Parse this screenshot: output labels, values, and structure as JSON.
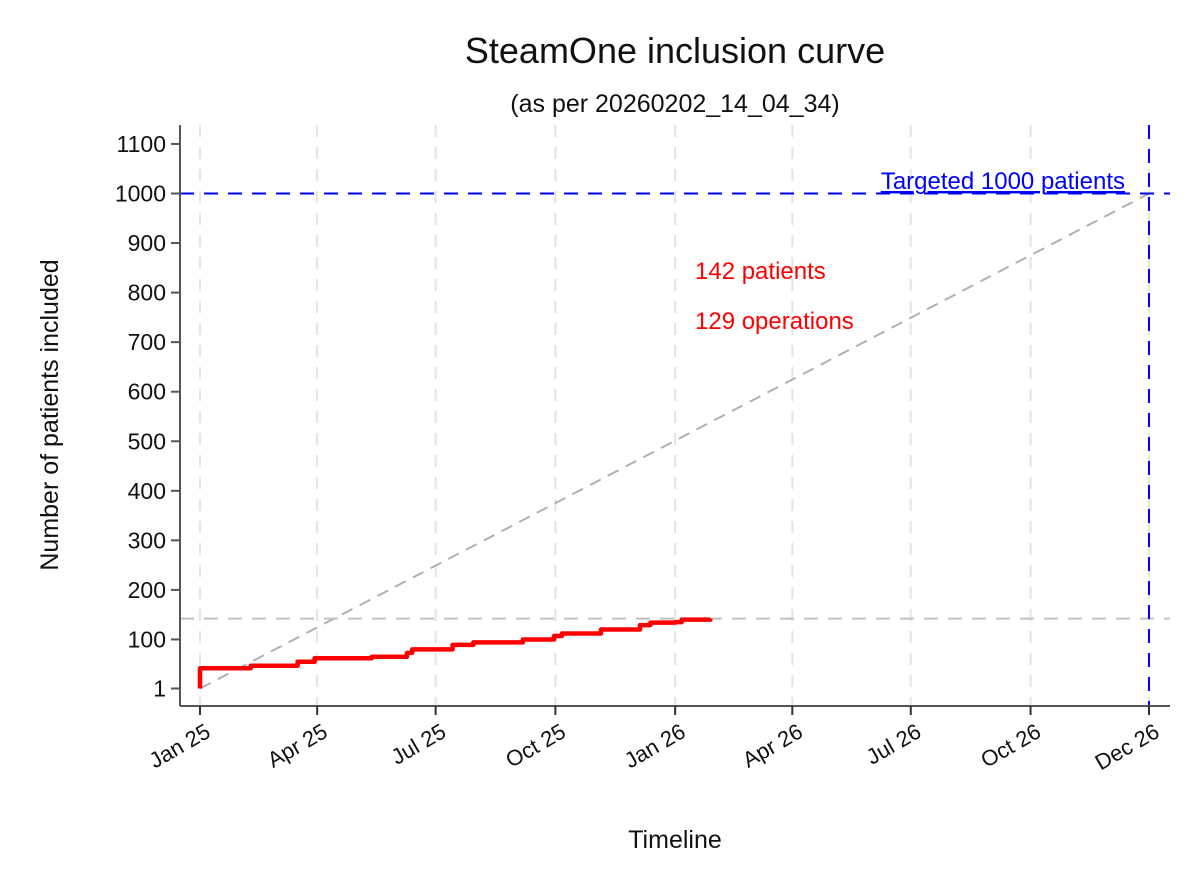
{
  "chart_data": {
    "type": "line",
    "title": "SteamOne inclusion curve",
    "subtitle": "(as per 20260202_14_04_34)",
    "xlabel": "Timeline",
    "ylabel": "Number of patients included",
    "xlim": [
      "2025-01-01",
      "2026-12-31"
    ],
    "ylim": [
      -30,
      1135
    ],
    "grid": "vertical dashed at x ticks",
    "x_ticks": [
      {
        "date": "2025-01-01",
        "label": "Jan 25"
      },
      {
        "date": "2025-04-01",
        "label": "Apr 25"
      },
      {
        "date": "2025-07-01",
        "label": "Jul 25"
      },
      {
        "date": "2025-10-01",
        "label": "Oct 25"
      },
      {
        "date": "2026-01-01",
        "label": "Jan 26"
      },
      {
        "date": "2026-04-01",
        "label": "Apr 26"
      },
      {
        "date": "2026-07-01",
        "label": "Jul 26"
      },
      {
        "date": "2026-10-01",
        "label": "Oct 26"
      },
      {
        "date": "2026-12-31",
        "label": "Dec 26"
      }
    ],
    "y_ticks": [
      1,
      100,
      200,
      300,
      400,
      500,
      600,
      700,
      800,
      900,
      1000,
      1100
    ],
    "series": [
      {
        "color": "#ff0000",
        "points": [
          [
            "2025-01-01",
            1
          ],
          [
            "2025-01-01",
            42
          ],
          [
            "2025-02-09",
            47
          ],
          [
            "2025-03-17",
            55
          ],
          [
            "2025-03-30",
            62
          ],
          [
            "2025-05-13",
            65
          ],
          [
            "2025-06-09",
            73
          ],
          [
            "2025-06-13",
            80
          ],
          [
            "2025-07-14",
            89
          ],
          [
            "2025-07-30",
            94
          ],
          [
            "2025-09-06",
            100
          ],
          [
            "2025-09-30",
            107
          ],
          [
            "2025-10-06",
            112
          ],
          [
            "2025-11-05",
            120
          ],
          [
            "2025-12-05",
            129
          ],
          [
            "2025-12-13",
            134
          ],
          [
            "2026-01-01",
            135
          ],
          [
            "2026-01-06",
            140
          ],
          [
            "2026-01-28",
            142
          ]
        ]
      }
    ],
    "reference_lines": {
      "target_diagonal": {
        "from": [
          "2025-01-01",
          1
        ],
        "to": [
          "2026-12-31",
          1000
        ],
        "color": "#b0b0b0"
      },
      "current_level": {
        "y": 142,
        "color": "#c0c0c0"
      },
      "target_level": {
        "y": 1000,
        "color": "#0000ff"
      },
      "target_date": {
        "x": "2026-12-31",
        "color": "#0000ff"
      }
    },
    "annotations": {
      "target": "Targeted 1000 patients",
      "patients": "142 patients",
      "operations": "129 operations"
    },
    "colors": {
      "inclusion": "#ff0000",
      "target": "#0000ff",
      "reference": "#b0b0b0",
      "axis": "#555555"
    }
  }
}
